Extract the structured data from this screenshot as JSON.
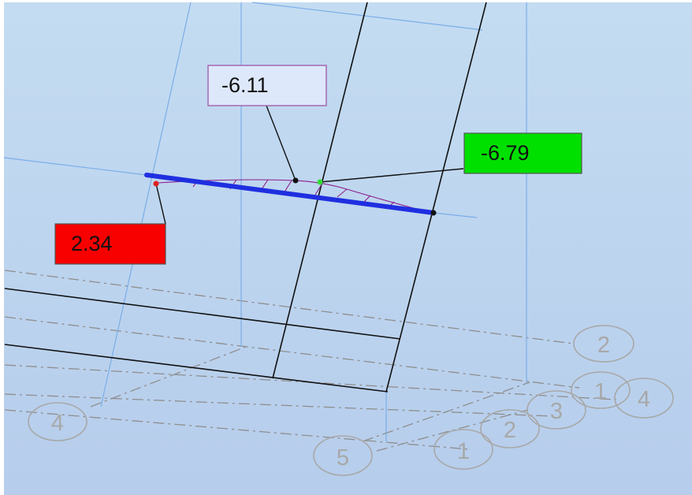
{
  "colors": {
    "background_top": "#c4dcf1",
    "background_bottom": "#b6cdec",
    "blue_grid_line": "#7aaee8",
    "black_line": "#111111",
    "dashdot_line": "#8e8e8e",
    "beam": "#1f2fe0",
    "diagram_curve": "#8b1d8b",
    "label_min": "#f80000",
    "label_max": "#00e000",
    "label_mid": "#dde8fb",
    "grid_bubble_stroke": "#a8a8a8",
    "grid_bubble_text": "#a8a8a8"
  },
  "result_labels": {
    "mid_value": "-6.11",
    "max_value": "-6.79",
    "min_value": "2.34"
  },
  "grid_bubbles": {
    "axis_2_right": "2",
    "axis_1_right": "1",
    "axis_4_right": "4",
    "axis_3_bottom": "3",
    "axis_2_bottom": "2",
    "axis_1_bottom": "1",
    "axis_5_bottom": "5",
    "axis_4_left": "4"
  }
}
